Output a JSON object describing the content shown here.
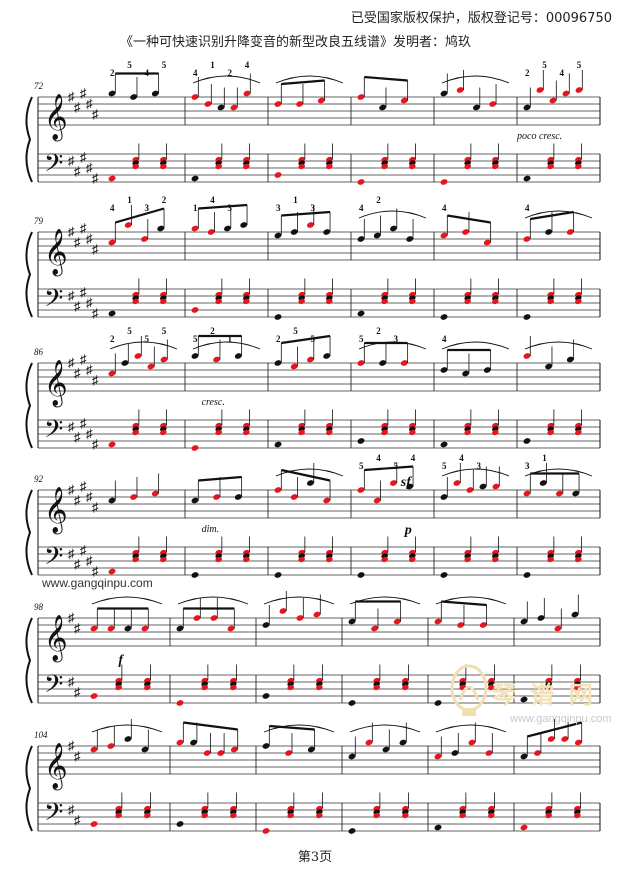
{
  "header": {
    "copyright": "已受国家版权保护，版权登记号：00096750",
    "subtitle": "《一种可快速识别升降变音的新型改良五线谱》发明者：鸠玖"
  },
  "page": {
    "label": "第3页"
  },
  "watermarks": {
    "site": "www.gangqinpu.com",
    "logo_text": "琴 谱 网",
    "logo_url": "www.gangqinpu.com"
  },
  "colors": {
    "red_note": "#e8141e",
    "black_note": "#111111",
    "staff": "#333333"
  },
  "systems": [
    {
      "measure_number": "72",
      "key_sharps": 5,
      "treble_text": [
        {
          "m": 0,
          "t": "2"
        },
        {
          "m": 0,
          "t": "5"
        },
        {
          "m": 0,
          "t": "4"
        },
        {
          "m": 0,
          "t": "5"
        },
        {
          "m": 1,
          "t": "4"
        },
        {
          "m": 1,
          "t": "1"
        },
        {
          "m": 1,
          "t": "2"
        },
        {
          "m": 1,
          "t": "4"
        },
        {
          "m": 5,
          "t": "2"
        },
        {
          "m": 5,
          "t": "5"
        },
        {
          "m": 5,
          "t": "4"
        },
        {
          "m": 5,
          "t": "5"
        }
      ],
      "expression": "poco cresc."
    },
    {
      "measure_number": "79",
      "key_sharps": 5,
      "treble_text": [
        {
          "m": 0,
          "t": "4"
        },
        {
          "m": 0,
          "t": "1"
        },
        {
          "m": 0,
          "t": "3"
        },
        {
          "m": 0,
          "t": "2"
        },
        {
          "m": 1,
          "t": "1"
        },
        {
          "m": 1,
          "t": "4"
        },
        {
          "m": 1,
          "t": "3"
        },
        {
          "m": 2,
          "t": "3"
        },
        {
          "m": 2,
          "t": "1"
        },
        {
          "m": 2,
          "t": "3"
        },
        {
          "m": 3,
          "t": "4"
        },
        {
          "m": 3,
          "t": "2"
        },
        {
          "m": 4,
          "t": "4"
        },
        {
          "m": 5,
          "t": "4"
        }
      ],
      "expression": ""
    },
    {
      "measure_number": "86",
      "key_sharps": 5,
      "treble_text": [
        {
          "m": 0,
          "t": "2"
        },
        {
          "m": 0,
          "t": "5"
        },
        {
          "m": 0,
          "t": "5"
        },
        {
          "m": 0,
          "t": "5"
        },
        {
          "m": 1,
          "t": "5"
        },
        {
          "m": 1,
          "t": "2"
        },
        {
          "m": 1,
          "t": "1"
        },
        {
          "m": 2,
          "t": "2"
        },
        {
          "m": 2,
          "t": "5"
        },
        {
          "m": 2,
          "t": "5"
        },
        {
          "m": 3,
          "t": "5"
        },
        {
          "m": 3,
          "t": "2"
        },
        {
          "m": 3,
          "t": "3"
        },
        {
          "m": 4,
          "t": "4"
        }
      ],
      "expression": "cresc."
    },
    {
      "measure_number": "92",
      "key_sharps": 5,
      "treble_text": [
        {
          "m": 3,
          "t": "5"
        },
        {
          "m": 3,
          "t": "4"
        },
        {
          "m": 3,
          "t": "5"
        },
        {
          "m": 3,
          "t": "4"
        },
        {
          "m": 4,
          "t": "5"
        },
        {
          "m": 4,
          "t": "4"
        },
        {
          "m": 4,
          "t": "3"
        },
        {
          "m": 5,
          "t": "3"
        },
        {
          "m": 5,
          "t": "1"
        }
      ],
      "expression": "dim.",
      "dynamics": [
        "sf",
        "p"
      ]
    },
    {
      "measure_number": "98",
      "key_sharps": 2,
      "treble_text": [],
      "expression": "",
      "dynamics": [
        "f"
      ]
    },
    {
      "measure_number": "104",
      "key_sharps": 2,
      "treble_text": [],
      "expression": ""
    }
  ]
}
